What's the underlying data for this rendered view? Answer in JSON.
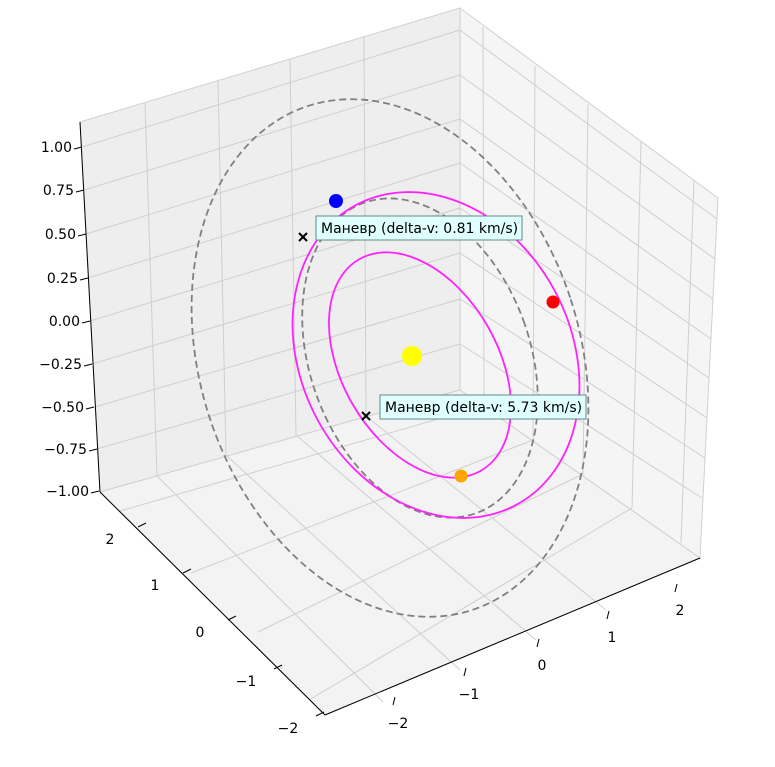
{
  "chart_data": {
    "type": "line",
    "projection": "3d",
    "title": "",
    "xlabel": "",
    "ylabel": "",
    "zlabel": "",
    "xlim": [
      -2.5,
      2.5
    ],
    "ylim": [
      -2.5,
      2.5
    ],
    "zlim": [
      -1.1,
      1.1
    ],
    "x_ticks": [
      "−2",
      "−1",
      "0",
      "1",
      "2"
    ],
    "y_ticks": [
      "−2",
      "−1",
      "0",
      "1",
      "2"
    ],
    "z_ticks": [
      "−1.00",
      "−0.75",
      "−0.50",
      "−0.25",
      "0.00",
      "0.25",
      "0.50",
      "0.75",
      "1.00"
    ],
    "grid": true,
    "legend": "none",
    "orbits": [
      {
        "style": "dashed",
        "color": "#808080",
        "radius_au": 1.0,
        "inclination_deg": 0
      },
      {
        "style": "dashed",
        "color": "#808080",
        "radius_au": 1.52,
        "inclination_deg": 0
      }
    ],
    "transfer_arcs": [
      {
        "color": "#ff22ff",
        "style": "solid",
        "shape": "ellipse",
        "approx_axes_au": [
          1.35,
          0.55
        ]
      },
      {
        "color": "#ff22ff",
        "style": "solid",
        "shape": "ellipse",
        "approx_axes_au": [
          1.6,
          0.7
        ]
      }
    ],
    "points": [
      {
        "label": "",
        "color": "#ffff00",
        "role": "sun",
        "x": 0.0,
        "y": 0.0,
        "z": 0.0
      },
      {
        "label": "",
        "color": "#0000ff",
        "x": -1.2,
        "y": 0.5,
        "z": 0.55
      },
      {
        "label": "",
        "color": "#ff0000",
        "x": 1.1,
        "y": -0.6,
        "z": 0.2
      },
      {
        "label": "",
        "color": "#ffa500",
        "x": 0.5,
        "y": 0.6,
        "z": -0.5
      }
    ],
    "annotations": [
      {
        "marker": "x",
        "text": "Маневр (delta-v: 0.81 km/s)"
      },
      {
        "marker": "x",
        "text": "Маневр (delta-v: 5.73 km/s)"
      }
    ],
    "colors": {
      "pane_left": "#eeeeee",
      "pane_right": "#f5f5f5",
      "pane_floor": "#f5f5f5",
      "grid": "#c8c8c8",
      "annotation_bg": "#e0ffff",
      "annotation_border": "#5f8a8a"
    }
  }
}
